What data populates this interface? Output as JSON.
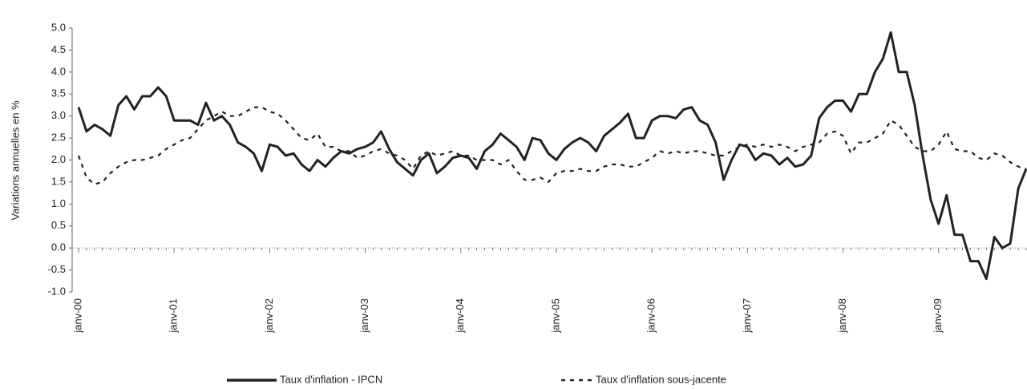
{
  "chart_data": {
    "type": "line",
    "y_label": "Variations annuelles en %",
    "categories": [
      "janv-00",
      null,
      null,
      null,
      null,
      null,
      null,
      null,
      null,
      null,
      null,
      null,
      "janv-01",
      null,
      null,
      null,
      null,
      null,
      null,
      null,
      null,
      null,
      null,
      null,
      "janv-02",
      null,
      null,
      null,
      null,
      null,
      null,
      null,
      null,
      null,
      null,
      null,
      "janv-03",
      null,
      null,
      null,
      null,
      null,
      null,
      null,
      null,
      null,
      null,
      null,
      "janv-04",
      null,
      null,
      null,
      null,
      null,
      null,
      null,
      null,
      null,
      null,
      null,
      "janv-05",
      null,
      null,
      null,
      null,
      null,
      null,
      null,
      null,
      null,
      null,
      null,
      "janv-06",
      null,
      null,
      null,
      null,
      null,
      null,
      null,
      null,
      null,
      null,
      null,
      "janv-07",
      null,
      null,
      null,
      null,
      null,
      null,
      null,
      null,
      null,
      null,
      null,
      "janv-08",
      null,
      null,
      null,
      null,
      null,
      null,
      null,
      null,
      null,
      null,
      null,
      "janv-09",
      null,
      null,
      null,
      null,
      null,
      null,
      null,
      null,
      null,
      null,
      null
    ],
    "series": [
      {
        "name": "Taux d'inflation - IPCN",
        "color": "#222222",
        "style": "solid",
        "values": [
          3.2,
          2.65,
          2.8,
          2.7,
          2.55,
          3.25,
          3.45,
          3.15,
          3.45,
          3.45,
          3.65,
          3.45,
          2.9,
          2.9,
          2.9,
          2.8,
          3.3,
          2.9,
          3.0,
          2.8,
          2.4,
          2.3,
          2.15,
          1.75,
          2.35,
          2.3,
          2.1,
          2.15,
          1.9,
          1.75,
          2.0,
          1.85,
          2.05,
          2.2,
          2.15,
          2.25,
          2.3,
          2.4,
          2.65,
          2.25,
          1.95,
          1.8,
          1.65,
          2.0,
          2.15,
          1.7,
          1.85,
          2.05,
          2.1,
          2.05,
          1.8,
          2.2,
          2.35,
          2.6,
          2.45,
          2.3,
          2.0,
          2.5,
          2.45,
          2.15,
          2.0,
          2.25,
          2.4,
          2.5,
          2.4,
          2.2,
          2.55,
          2.7,
          2.85,
          3.05,
          2.5,
          2.5,
          2.9,
          3.0,
          3.0,
          2.95,
          3.15,
          3.2,
          2.9,
          2.8,
          2.4,
          1.55,
          2.0,
          2.35,
          2.3,
          2.0,
          2.15,
          2.1,
          1.9,
          2.05,
          1.85,
          1.9,
          2.1,
          2.95,
          3.2,
          3.35,
          3.35,
          3.1,
          3.5,
          3.5,
          4.0,
          4.3,
          4.9,
          4.0,
          4.0,
          3.25,
          2.1,
          1.1,
          0.55,
          1.2,
          0.3,
          0.3,
          -0.3,
          -0.3,
          -0.7,
          0.25,
          0.0,
          0.1,
          1.35,
          1.8
        ]
      },
      {
        "name": "Taux d'inflation sous-jacente",
        "color": "#222222",
        "style": "dashed",
        "values": [
          2.1,
          1.6,
          1.45,
          1.5,
          1.7,
          1.85,
          1.95,
          2.0,
          2.0,
          2.05,
          2.1,
          2.25,
          2.35,
          2.45,
          2.5,
          2.7,
          2.9,
          3.0,
          3.1,
          3.0,
          3.0,
          3.1,
          3.2,
          3.2,
          3.1,
          3.05,
          2.9,
          2.7,
          2.5,
          2.45,
          2.6,
          2.3,
          2.3,
          2.2,
          2.2,
          2.05,
          2.1,
          2.2,
          2.25,
          2.15,
          2.1,
          2.0,
          1.8,
          2.1,
          2.2,
          2.1,
          2.15,
          2.2,
          2.1,
          2.1,
          2.0,
          2.0,
          2.0,
          1.9,
          2.0,
          1.75,
          1.55,
          1.55,
          1.6,
          1.5,
          1.7,
          1.75,
          1.75,
          1.8,
          1.75,
          1.75,
          1.85,
          1.9,
          1.9,
          1.85,
          1.85,
          1.95,
          2.05,
          2.2,
          2.15,
          2.2,
          2.15,
          2.2,
          2.2,
          2.15,
          2.1,
          2.1,
          2.2,
          2.3,
          2.35,
          2.3,
          2.35,
          2.3,
          2.35,
          2.3,
          2.2,
          2.3,
          2.35,
          2.4,
          2.6,
          2.65,
          2.55,
          2.15,
          2.4,
          2.4,
          2.5,
          2.6,
          2.9,
          2.8,
          2.55,
          2.3,
          2.2,
          2.2,
          2.35,
          2.65,
          2.25,
          2.2,
          2.2,
          2.05,
          2.0,
          2.15,
          2.1,
          1.95,
          1.85,
          1.8
        ]
      }
    ],
    "ylim": [
      -1,
      5
    ],
    "yticks": [
      {
        "value": -1,
        "label": "-1.0"
      },
      -0.5,
      {
        "value": 0,
        "label": "0.0"
      },
      0.5,
      {
        "value": 1,
        "label": "1.0"
      },
      1.5,
      {
        "value": 2,
        "label": "2.0"
      },
      2.5,
      {
        "value": 3,
        "label": "3.0"
      },
      3.5,
      {
        "value": 4,
        "label": "4.0"
      },
      4.5,
      {
        "value": 5,
        "label": "5.0"
      }
    ],
    "zero_line": true,
    "grid": false,
    "legend": "bottom"
  }
}
